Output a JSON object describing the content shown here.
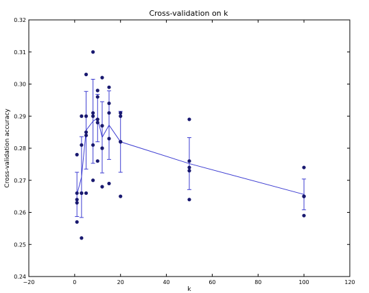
{
  "chart_data": {
    "type": "scatter",
    "title": "Cross-validation on k",
    "xlabel": "k",
    "ylabel": "Cross-validation accuracy",
    "xlim": [
      -20,
      120
    ],
    "ylim": [
      0.24,
      0.32
    ],
    "xticks": [
      "−20",
      "0",
      "20",
      "40",
      "60",
      "80",
      "100",
      "120"
    ],
    "yticks": [
      "0.24",
      "0.25",
      "0.26",
      "0.27",
      "0.28",
      "0.29",
      "0.30",
      "0.31",
      "0.32"
    ],
    "grid": false,
    "colors": {
      "points": "#191970",
      "line": "#3b3bd1",
      "axes": "#000000"
    },
    "points": [
      {
        "k": 1,
        "y": 0.278
      },
      {
        "k": 1,
        "y": 0.266
      },
      {
        "k": 1,
        "y": 0.264
      },
      {
        "k": 1,
        "y": 0.263
      },
      {
        "k": 1,
        "y": 0.257
      },
      {
        "k": 3,
        "y": 0.29
      },
      {
        "k": 3,
        "y": 0.281
      },
      {
        "k": 3,
        "y": 0.266
      },
      {
        "k": 3,
        "y": 0.266
      },
      {
        "k": 3,
        "y": 0.252
      },
      {
        "k": 5,
        "y": 0.303
      },
      {
        "k": 5,
        "y": 0.29
      },
      {
        "k": 5,
        "y": 0.285
      },
      {
        "k": 5,
        "y": 0.284
      },
      {
        "k": 5,
        "y": 0.266
      },
      {
        "k": 8,
        "y": 0.31
      },
      {
        "k": 8,
        "y": 0.291
      },
      {
        "k": 8,
        "y": 0.29
      },
      {
        "k": 8,
        "y": 0.281
      },
      {
        "k": 8,
        "y": 0.27
      },
      {
        "k": 10,
        "y": 0.298
      },
      {
        "k": 10,
        "y": 0.296
      },
      {
        "k": 10,
        "y": 0.289
      },
      {
        "k": 10,
        "y": 0.288
      },
      {
        "k": 10,
        "y": 0.276
      },
      {
        "k": 12,
        "y": 0.302
      },
      {
        "k": 12,
        "y": 0.287
      },
      {
        "k": 12,
        "y": 0.28
      },
      {
        "k": 12,
        "y": 0.28
      },
      {
        "k": 12,
        "y": 0.268
      },
      {
        "k": 15,
        "y": 0.299
      },
      {
        "k": 15,
        "y": 0.294
      },
      {
        "k": 15,
        "y": 0.291
      },
      {
        "k": 15,
        "y": 0.283
      },
      {
        "k": 15,
        "y": 0.269
      },
      {
        "k": 20,
        "y": 0.291
      },
      {
        "k": 20,
        "y": 0.29
      },
      {
        "k": 20,
        "y": 0.282
      },
      {
        "k": 20,
        "y": 0.282
      },
      {
        "k": 20,
        "y": 0.265
      },
      {
        "k": 50,
        "y": 0.289
      },
      {
        "k": 50,
        "y": 0.276
      },
      {
        "k": 50,
        "y": 0.274
      },
      {
        "k": 50,
        "y": 0.273
      },
      {
        "k": 50,
        "y": 0.264
      },
      {
        "k": 100,
        "y": 0.274
      },
      {
        "k": 100,
        "y": 0.265
      },
      {
        "k": 100,
        "y": 0.265
      },
      {
        "k": 100,
        "y": 0.265
      },
      {
        "k": 100,
        "y": 0.259
      }
    ],
    "mean_line": {
      "k": [
        1,
        3,
        5,
        8,
        10,
        12,
        15,
        20,
        50,
        100
      ],
      "mean": [
        0.2656,
        0.271,
        0.2856,
        0.2884,
        0.2894,
        0.2834,
        0.2872,
        0.282,
        0.2752,
        0.2656
      ],
      "std": [
        0.0069,
        0.0126,
        0.0121,
        0.0131,
        0.0074,
        0.0111,
        0.0107,
        0.0095,
        0.0081,
        0.0048
      ]
    }
  }
}
